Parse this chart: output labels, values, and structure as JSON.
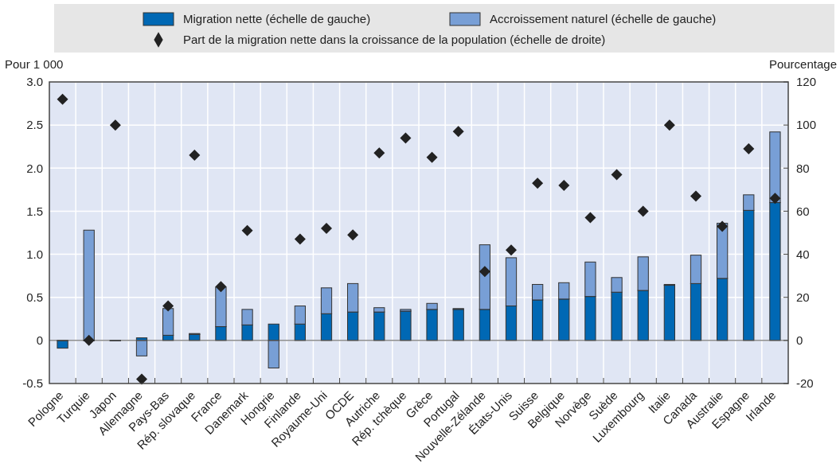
{
  "chart_data": {
    "type": "bar",
    "stacked": true,
    "ylabel": "Pour 1 000",
    "y2label": "Pourcentage",
    "categories": [
      "Pologne",
      "Turquie",
      "Japon",
      "Allemagne",
      "Pays-Bas",
      "Rép. slovaque",
      "France",
      "Danemark",
      "Hongrie",
      "Finlande",
      "Royaume-Uni",
      "OCDE",
      "Autriche",
      "Rép. tchèque",
      "Grèce",
      "Portugal",
      "Nouvelle-Zélande",
      "États-Unis",
      "Suisse",
      "Belgique",
      "Norvège",
      "Suède",
      "Luxembourg",
      "Italie",
      "Canada",
      "Australie",
      "Espagne",
      "Irlande"
    ],
    "series": [
      {
        "name": "Migration nette (échelle de gauche)",
        "color": "#0068b4",
        "values": [
          -0.09,
          0,
          0,
          0.03,
          0.06,
          0.07,
          0.16,
          0.18,
          0.19,
          0.19,
          0.31,
          0.33,
          0.33,
          0.34,
          0.36,
          0.36,
          0.36,
          0.4,
          0.47,
          0.48,
          0.51,
          0.56,
          0.58,
          0.64,
          0.66,
          0.72,
          1.51,
          1.6
        ]
      },
      {
        "name": "Accroissement naturel (échelle de gauche)",
        "color": "#789fd6",
        "values": [
          0,
          1.28,
          0,
          -0.18,
          0.31,
          0.01,
          0.46,
          0.18,
          -0.32,
          0.21,
          0.3,
          0.33,
          0.05,
          0.02,
          0.07,
          0.01,
          0.75,
          0.56,
          0.18,
          0.19,
          0.4,
          0.17,
          0.39,
          0.01,
          0.33,
          0.64,
          0.18,
          0.82
        ]
      },
      {
        "name": "Part de la migration nette dans la croissance de la population (échelle de droite)",
        "type": "scatter",
        "axis": "y2",
        "color": "#222222",
        "marker": "diamond",
        "values": [
          112,
          0,
          100,
          -18,
          16,
          86,
          25,
          51,
          null,
          47,
          52,
          49,
          87,
          94,
          85,
          97,
          32,
          42,
          73,
          72,
          57,
          77,
          60,
          100,
          67,
          53,
          89,
          66
        ]
      }
    ],
    "ylim": [
      -0.5,
      3.0
    ],
    "yticks": [
      {
        "value": -0.5,
        "label": "-0.5"
      },
      {
        "value": 0,
        "label": "0"
      },
      {
        "value": 0.5,
        "label": "0.5"
      },
      {
        "value": 1,
        "label": "1.0"
      },
      {
        "value": 1.5,
        "label": "1.5"
      },
      {
        "value": 2,
        "label": "2.0"
      },
      {
        "value": 2.5,
        "label": "2.5"
      },
      {
        "value": 3,
        "label": "3.0"
      }
    ],
    "y2lim": [
      -20,
      120
    ],
    "y2ticks": [
      -20,
      0,
      20,
      40,
      60,
      80,
      100,
      120
    ],
    "grid": true,
    "legend": "top"
  }
}
